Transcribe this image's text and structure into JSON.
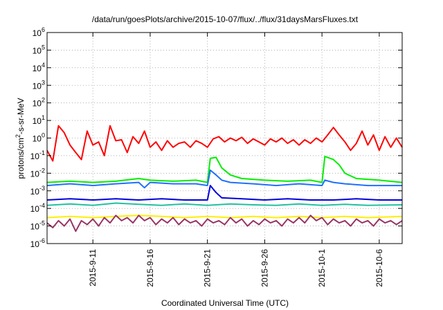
{
  "chart_data": {
    "type": "line",
    "title": "/data/run/goesPlots/archive/2015-10-07/flux/../flux/31daysMarsFluxes.txt",
    "xlabel": "Coordinated Universal Time (UTC)",
    "ylabel_prefix": "protons/cm",
    "ylabel_exp": "2",
    "ylabel_suffix": "-s-sr-MeV",
    "y_scale": "log",
    "ylim": [
      1e-06,
      1000000.0
    ],
    "xlim": [
      "2015-09-07",
      "2015-10-08"
    ],
    "x_ticks": [
      "2015-9-11",
      "2015-9-16",
      "2015-9-21",
      "2015-9-26",
      "2015-10-1",
      "2015-10-6"
    ],
    "y_ticks": [
      {
        "base": "10",
        "exp": "-6"
      },
      {
        "base": "10",
        "exp": "-5"
      },
      {
        "base": "10",
        "exp": "-4"
      },
      {
        "base": "10",
        "exp": "-3"
      },
      {
        "base": "10",
        "exp": "-2"
      },
      {
        "base": "10",
        "exp": "-1"
      },
      {
        "base": "10",
        "exp": "0"
      },
      {
        "base": "10",
        "exp": "1"
      },
      {
        "base": "10",
        "exp": "2"
      },
      {
        "base": "10",
        "exp": "3"
      },
      {
        "base": "10",
        "exp": "4"
      },
      {
        "base": "10",
        "exp": "5"
      },
      {
        "base": "10",
        "exp": "6"
      }
    ],
    "grid": true,
    "series": [
      {
        "color": "#ff0000",
        "points": [
          [
            "2015-09-07",
            0.2
          ],
          [
            "2015-09-07T12:00",
            0.05
          ],
          [
            "2015-09-08",
            5
          ],
          [
            "2015-09-08T12:00",
            2
          ],
          [
            "2015-09-09",
            0.4
          ],
          [
            "2015-09-09T12:00",
            0.15
          ],
          [
            "2015-09-10",
            0.06
          ],
          [
            "2015-09-10T12:00",
            2.5
          ],
          [
            "2015-09-11",
            0.4
          ],
          [
            "2015-09-11T12:00",
            0.6
          ],
          [
            "2015-09-12",
            0.1
          ],
          [
            "2015-09-12T12:00",
            5
          ],
          [
            "2015-09-13",
            0.7
          ],
          [
            "2015-09-13T12:00",
            0.8
          ],
          [
            "2015-09-14",
            0.15
          ],
          [
            "2015-09-14T12:00",
            1.2
          ],
          [
            "2015-09-15",
            0.5
          ],
          [
            "2015-09-15T12:00",
            2.5
          ],
          [
            "2015-09-16",
            0.3
          ],
          [
            "2015-09-16T12:00",
            0.6
          ],
          [
            "2015-09-17",
            0.2
          ],
          [
            "2015-09-17T12:00",
            0.7
          ],
          [
            "2015-09-18",
            0.3
          ],
          [
            "2015-09-18T12:00",
            0.5
          ],
          [
            "2015-09-19",
            0.6
          ],
          [
            "2015-09-19T12:00",
            0.3
          ],
          [
            "2015-09-20",
            0.7
          ],
          [
            "2015-09-20T12:00",
            0.5
          ],
          [
            "2015-09-21",
            0.3
          ],
          [
            "2015-09-21T12:00",
            0.9
          ],
          [
            "2015-09-22",
            1.2
          ],
          [
            "2015-09-22T12:00",
            0.6
          ],
          [
            "2015-09-23",
            1
          ],
          [
            "2015-09-23T12:00",
            0.7
          ],
          [
            "2015-09-24",
            1.1
          ],
          [
            "2015-09-24T12:00",
            0.5
          ],
          [
            "2015-09-25",
            0.9
          ],
          [
            "2015-09-25T12:00",
            0.6
          ],
          [
            "2015-09-26",
            0.4
          ],
          [
            "2015-09-26T12:00",
            0.9
          ],
          [
            "2015-09-27",
            0.6
          ],
          [
            "2015-09-27T12:00",
            1
          ],
          [
            "2015-09-28",
            0.5
          ],
          [
            "2015-09-28T12:00",
            0.8
          ],
          [
            "2015-09-29",
            0.4
          ],
          [
            "2015-09-29T12:00",
            0.8
          ],
          [
            "2015-09-30",
            0.5
          ],
          [
            "2015-09-30T12:00",
            1
          ],
          [
            "2015-10-01",
            0.6
          ],
          [
            "2015-10-01T12:00",
            1.5
          ],
          [
            "2015-10-02",
            4
          ],
          [
            "2015-10-02T12:00",
            1.5
          ],
          [
            "2015-10-03",
            0.6
          ],
          [
            "2015-10-03T12:00",
            0.2
          ],
          [
            "2015-10-04",
            0.5
          ],
          [
            "2015-10-04T12:00",
            2.5
          ],
          [
            "2015-10-05",
            0.4
          ],
          [
            "2015-10-05T12:00",
            1.5
          ],
          [
            "2015-10-06",
            0.2
          ],
          [
            "2015-10-06T12:00",
            1.2
          ],
          [
            "2015-10-07",
            0.3
          ],
          [
            "2015-10-07T12:00",
            1
          ],
          [
            "2015-10-08",
            0.3
          ]
        ]
      },
      {
        "color": "#00ee00",
        "points": [
          [
            "2015-09-07",
            0.003
          ],
          [
            "2015-09-09",
            0.0035
          ],
          [
            "2015-09-11",
            0.003
          ],
          [
            "2015-09-13",
            0.0035
          ],
          [
            "2015-09-15",
            0.005
          ],
          [
            "2015-09-16",
            0.004
          ],
          [
            "2015-09-18",
            0.0035
          ],
          [
            "2015-09-20",
            0.004
          ],
          [
            "2015-09-21",
            0.003
          ],
          [
            "2015-09-21T06:00",
            0.07
          ],
          [
            "2015-09-21T18:00",
            0.08
          ],
          [
            "2015-09-22T06:00",
            0.02
          ],
          [
            "2015-09-23",
            0.008
          ],
          [
            "2015-09-24",
            0.005
          ],
          [
            "2015-09-26",
            0.004
          ],
          [
            "2015-09-28",
            0.0035
          ],
          [
            "2015-09-30",
            0.004
          ],
          [
            "2015-10-01",
            0.003
          ],
          [
            "2015-10-01T06:00",
            0.09
          ],
          [
            "2015-10-02",
            0.06
          ],
          [
            "2015-10-02T12:00",
            0.03
          ],
          [
            "2015-10-03",
            0.01
          ],
          [
            "2015-10-04",
            0.005
          ],
          [
            "2015-10-06",
            0.004
          ],
          [
            "2015-10-08",
            0.003
          ]
        ]
      },
      {
        "color": "#1e6fff",
        "points": [
          [
            "2015-09-07",
            0.002
          ],
          [
            "2015-09-09",
            0.0025
          ],
          [
            "2015-09-11",
            0.002
          ],
          [
            "2015-09-13",
            0.0025
          ],
          [
            "2015-09-15",
            0.003
          ],
          [
            "2015-09-15T12:00",
            0.0015
          ],
          [
            "2015-09-16",
            0.003
          ],
          [
            "2015-09-18",
            0.0025
          ],
          [
            "2015-09-20",
            0.0025
          ],
          [
            "2015-09-21",
            0.002
          ],
          [
            "2015-09-21T06:00",
            0.015
          ],
          [
            "2015-09-21T18:00",
            0.008
          ],
          [
            "2015-09-22T06:00",
            0.004
          ],
          [
            "2015-09-23",
            0.003
          ],
          [
            "2015-09-25",
            0.0025
          ],
          [
            "2015-09-27",
            0.002
          ],
          [
            "2015-09-29",
            0.0025
          ],
          [
            "2015-10-01",
            0.002
          ],
          [
            "2015-10-01T06:00",
            0.004
          ],
          [
            "2015-10-02",
            0.003
          ],
          [
            "2015-10-03",
            0.0025
          ],
          [
            "2015-10-05",
            0.002
          ],
          [
            "2015-10-08",
            0.002
          ]
        ]
      },
      {
        "color": "#0000dd",
        "points": [
          [
            "2015-09-07",
            0.0003
          ],
          [
            "2015-09-09",
            0.00035
          ],
          [
            "2015-09-11",
            0.0003
          ],
          [
            "2015-09-13",
            0.00035
          ],
          [
            "2015-09-15",
            0.0003
          ],
          [
            "2015-09-17",
            0.00035
          ],
          [
            "2015-09-19",
            0.0003
          ],
          [
            "2015-09-21",
            0.0003
          ],
          [
            "2015-09-21T06:00",
            0.002
          ],
          [
            "2015-09-21T18:00",
            0.0008
          ],
          [
            "2015-09-22T06:00",
            0.0004
          ],
          [
            "2015-09-24",
            0.00035
          ],
          [
            "2015-09-26",
            0.0003
          ],
          [
            "2015-09-28",
            0.00035
          ],
          [
            "2015-09-30",
            0.0003
          ],
          [
            "2015-10-02",
            0.0003
          ],
          [
            "2015-10-04",
            0.00035
          ],
          [
            "2015-10-06",
            0.0003
          ],
          [
            "2015-10-08",
            0.0003
          ]
        ]
      },
      {
        "color": "#20c0a0",
        "points": [
          [
            "2015-09-07",
            0.00015
          ],
          [
            "2015-09-09",
            0.00018
          ],
          [
            "2015-09-11",
            0.00015
          ],
          [
            "2015-09-13",
            0.0002
          ],
          [
            "2015-09-15",
            0.00017
          ],
          [
            "2015-09-17",
            0.00015
          ],
          [
            "2015-09-19",
            0.00018
          ],
          [
            "2015-09-21",
            0.00015
          ],
          [
            "2015-09-23",
            0.00018
          ],
          [
            "2015-09-25",
            0.00016
          ],
          [
            "2015-09-27",
            0.00015
          ],
          [
            "2015-09-29",
            0.00018
          ],
          [
            "2015-10-01",
            0.00015
          ],
          [
            "2015-10-03",
            0.00017
          ],
          [
            "2015-10-05",
            0.00015
          ],
          [
            "2015-10-08",
            0.00016
          ]
        ]
      },
      {
        "color": "#ffee00",
        "points": [
          [
            "2015-09-07",
            3e-05
          ],
          [
            "2015-09-09",
            3.5e-05
          ],
          [
            "2015-09-11",
            3e-05
          ],
          [
            "2015-09-13",
            3.5e-05
          ],
          [
            "2015-09-15",
            4e-05
          ],
          [
            "2015-09-17",
            3.5e-05
          ],
          [
            "2015-09-19",
            3e-05
          ],
          [
            "2015-09-21",
            3.5e-05
          ],
          [
            "2015-09-23",
            3e-05
          ],
          [
            "2015-09-25",
            3.5e-05
          ],
          [
            "2015-09-27",
            3e-05
          ],
          [
            "2015-09-29",
            3.5e-05
          ],
          [
            "2015-10-01",
            3e-05
          ],
          [
            "2015-10-03",
            3.5e-05
          ],
          [
            "2015-10-05",
            3e-05
          ],
          [
            "2015-10-08",
            3.5e-05
          ]
        ]
      },
      {
        "color": "#993366",
        "points": [
          [
            "2015-09-07",
            1.5e-05
          ],
          [
            "2015-09-07T12:00",
            8e-06
          ],
          [
            "2015-09-08",
            2e-05
          ],
          [
            "2015-09-08T12:00",
            1e-05
          ],
          [
            "2015-09-09",
            2.5e-05
          ],
          [
            "2015-09-09T12:00",
            5e-06
          ],
          [
            "2015-09-10",
            2e-05
          ],
          [
            "2015-09-10T12:00",
            1.2e-05
          ],
          [
            "2015-09-11",
            2.5e-05
          ],
          [
            "2015-09-11T12:00",
            1e-05
          ],
          [
            "2015-09-12",
            3e-05
          ],
          [
            "2015-09-12T12:00",
            1.5e-05
          ],
          [
            "2015-09-13",
            4e-05
          ],
          [
            "2015-09-13T12:00",
            2e-05
          ],
          [
            "2015-09-14",
            3e-05
          ],
          [
            "2015-09-14T12:00",
            1.5e-05
          ],
          [
            "2015-09-15",
            4e-05
          ],
          [
            "2015-09-15T12:00",
            2e-05
          ],
          [
            "2015-09-16",
            3e-05
          ],
          [
            "2015-09-16T12:00",
            1.2e-05
          ],
          [
            "2015-09-17",
            2.5e-05
          ],
          [
            "2015-09-17T12:00",
            1.5e-05
          ],
          [
            "2015-09-18",
            3e-05
          ],
          [
            "2015-09-18T12:00",
            1.2e-05
          ],
          [
            "2015-09-19",
            2.5e-05
          ],
          [
            "2015-09-19T12:00",
            1.5e-05
          ],
          [
            "2015-09-20",
            2e-05
          ],
          [
            "2015-09-20T12:00",
            1e-05
          ],
          [
            "2015-09-21",
            2.5e-05
          ],
          [
            "2015-09-21T12:00",
            1.5e-05
          ],
          [
            "2015-09-22",
            2e-05
          ],
          [
            "2015-09-22T12:00",
            1.2e-05
          ],
          [
            "2015-09-23",
            3e-05
          ],
          [
            "2015-09-23T12:00",
            1.5e-05
          ],
          [
            "2015-09-24",
            2.5e-05
          ],
          [
            "2015-09-24T12:00",
            1e-05
          ],
          [
            "2015-09-25",
            2e-05
          ],
          [
            "2015-09-25T12:00",
            1.2e-05
          ],
          [
            "2015-09-26",
            2.5e-05
          ],
          [
            "2015-09-26T12:00",
            1.5e-05
          ],
          [
            "2015-09-27",
            2e-05
          ],
          [
            "2015-09-27T12:00",
            1e-05
          ],
          [
            "2015-09-28",
            2.5e-05
          ],
          [
            "2015-09-28T12:00",
            1.5e-05
          ],
          [
            "2015-09-29",
            3e-05
          ],
          [
            "2015-09-29T12:00",
            1.5e-05
          ],
          [
            "2015-09-30",
            4e-05
          ],
          [
            "2015-09-30T12:00",
            2e-05
          ],
          [
            "2015-10-01",
            3e-05
          ],
          [
            "2015-10-01T12:00",
            1.2e-05
          ],
          [
            "2015-10-02",
            2.5e-05
          ],
          [
            "2015-10-02T12:00",
            1.5e-05
          ],
          [
            "2015-10-03",
            2e-05
          ],
          [
            "2015-10-03T12:00",
            1e-05
          ],
          [
            "2015-10-04",
            2.5e-05
          ],
          [
            "2015-10-04T12:00",
            1.5e-05
          ],
          [
            "2015-10-05",
            2e-05
          ],
          [
            "2015-10-05T12:00",
            1e-05
          ],
          [
            "2015-10-06",
            2.5e-05
          ],
          [
            "2015-10-06T12:00",
            1.5e-05
          ],
          [
            "2015-10-07",
            2e-05
          ],
          [
            "2015-10-07T12:00",
            1.2e-05
          ],
          [
            "2015-10-08",
            2e-05
          ]
        ]
      }
    ]
  }
}
